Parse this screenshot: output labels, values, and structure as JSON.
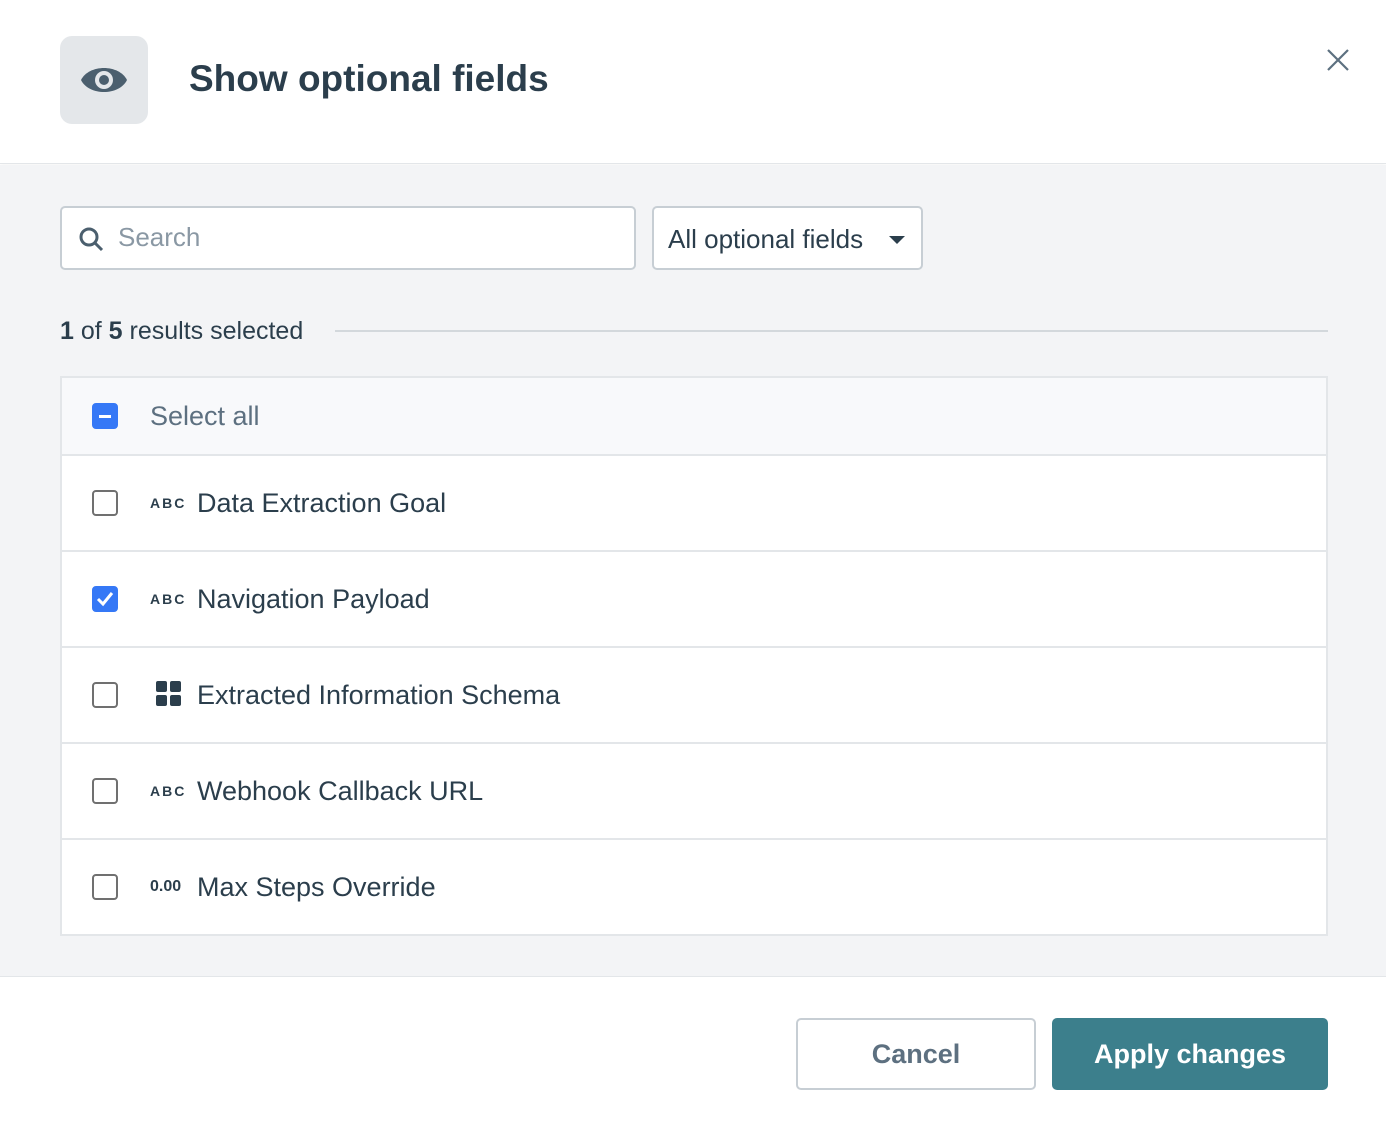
{
  "header": {
    "title": "Show optional fields",
    "icon": "eye-icon"
  },
  "filters": {
    "search_placeholder": "Search",
    "search_value": "",
    "dropdown_value": "All optional fields"
  },
  "summary": {
    "selected": "1",
    "of": "of",
    "total": "5",
    "suffix": "results selected"
  },
  "list": {
    "select_all": {
      "label": "Select all",
      "state": "indeterminate"
    },
    "items": [
      {
        "type": "ABC",
        "label": "Data Extraction Goal",
        "checked": false
      },
      {
        "type": "ABC",
        "label": "Navigation Payload",
        "checked": true
      },
      {
        "type": "grid-icon",
        "label": "Extracted Information Schema",
        "checked": false
      },
      {
        "type": "ABC",
        "label": "Webhook Callback URL",
        "checked": false
      },
      {
        "type": "0.00",
        "label": "Max Steps Override",
        "checked": false
      }
    ]
  },
  "footer": {
    "cancel": "Cancel",
    "apply": "Apply changes"
  },
  "colors": {
    "accent": "#3578f6",
    "primary_button": "#3c7f8c",
    "text": "#2b3e4c"
  }
}
